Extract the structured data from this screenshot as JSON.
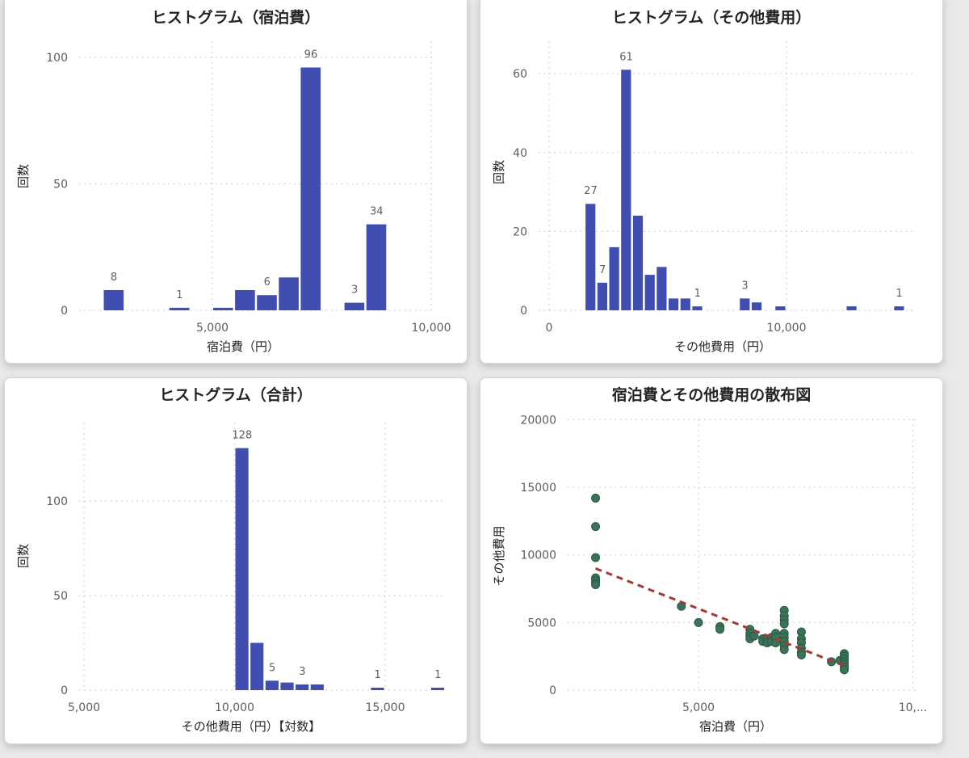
{
  "colors": {
    "bar": "#3f4eb0",
    "scatter_point": "#3b7358",
    "scatter_point_stroke": "#2a5a43",
    "trend_line": "#a33a3a",
    "grid": "#c8c8c8",
    "card_bg": "#ffffff",
    "page_bg": "#e9e9e9"
  },
  "cards": [
    {
      "title": "ヒストグラム（宿泊費）",
      "xlabel": "宿泊費（円）",
      "ylabel": "回数"
    },
    {
      "title": "ヒストグラム（その他費用）",
      "xlabel": "その他費用（円）",
      "ylabel": "回数"
    },
    {
      "title": "ヒストグラム（合計）",
      "xlabel": "その他費用（円）【対数】",
      "ylabel": "回数"
    },
    {
      "title": "宿泊費とその他費用の散布図",
      "xlabel": "宿泊費（円）",
      "ylabel": "その他費用"
    }
  ],
  "chart_data": [
    {
      "type": "bar",
      "title": "ヒストグラム（宿泊費）",
      "xlabel": "宿泊費（円）",
      "ylabel": "回数",
      "x_ticks": [
        "5,000",
        "10,000"
      ],
      "y_ticks": [
        "0",
        "50",
        "100"
      ],
      "xlim": [
        2300,
        10000
      ],
      "ylim": [
        0,
        100
      ],
      "grid": true,
      "bin_width": 500,
      "bins": [
        {
          "x": 2500,
          "value": 8,
          "label": "8"
        },
        {
          "x": 4000,
          "value": 1,
          "label": "1"
        },
        {
          "x": 5000,
          "value": 1,
          "label": ""
        },
        {
          "x": 5500,
          "value": 8,
          "label": ""
        },
        {
          "x": 6000,
          "value": 6,
          "label": "6"
        },
        {
          "x": 6500,
          "value": 13,
          "label": ""
        },
        {
          "x": 7000,
          "value": 96,
          "label": "96"
        },
        {
          "x": 8000,
          "value": 3,
          "label": "3"
        },
        {
          "x": 8500,
          "value": 34,
          "label": "34"
        }
      ]
    },
    {
      "type": "bar",
      "title": "ヒストグラム（その他費用）",
      "xlabel": "その他費用（円）",
      "ylabel": "回数",
      "x_ticks": [
        "0",
        "10,000"
      ],
      "y_ticks": [
        "0",
        "20",
        "40",
        "60"
      ],
      "xlim": [
        0,
        15000
      ],
      "ylim": [
        0,
        60
      ],
      "grid": true,
      "bin_width": 500,
      "bins": [
        {
          "x": 1500,
          "value": 27,
          "label": "27"
        },
        {
          "x": 2000,
          "value": 7,
          "label": "7"
        },
        {
          "x": 2500,
          "value": 16,
          "label": ""
        },
        {
          "x": 3000,
          "value": 61,
          "label": "61"
        },
        {
          "x": 3500,
          "value": 24,
          "label": ""
        },
        {
          "x": 4000,
          "value": 9,
          "label": ""
        },
        {
          "x": 4500,
          "value": 11,
          "label": ""
        },
        {
          "x": 5000,
          "value": 3,
          "label": ""
        },
        {
          "x": 5500,
          "value": 3,
          "label": ""
        },
        {
          "x": 6000,
          "value": 1,
          "label": "1"
        },
        {
          "x": 8000,
          "value": 3,
          "label": "3"
        },
        {
          "x": 8500,
          "value": 2,
          "label": ""
        },
        {
          "x": 9500,
          "value": 1,
          "label": ""
        },
        {
          "x": 12500,
          "value": 1,
          "label": ""
        },
        {
          "x": 14500,
          "value": 1,
          "label": "1"
        }
      ]
    },
    {
      "type": "bar",
      "title": "ヒストグラム（合計）",
      "xlabel": "その他費用（円）【対数】",
      "ylabel": "回数",
      "x_ticks": [
        "5,000",
        "10,000",
        "15,000"
      ],
      "y_ticks": [
        "0",
        "50",
        "100"
      ],
      "xlim": [
        5000,
        17000
      ],
      "ylim": [
        0,
        100
      ],
      "grid": true,
      "bin_width": 500,
      "bins": [
        {
          "x": 10000,
          "value": 128,
          "label": "128"
        },
        {
          "x": 10500,
          "value": 25,
          "label": ""
        },
        {
          "x": 11000,
          "value": 5,
          "label": "5"
        },
        {
          "x": 11500,
          "value": 4,
          "label": ""
        },
        {
          "x": 12000,
          "value": 3,
          "label": "3"
        },
        {
          "x": 12500,
          "value": 3,
          "label": ""
        },
        {
          "x": 14500,
          "value": 1,
          "label": "1"
        },
        {
          "x": 16500,
          "value": 1,
          "label": "1"
        }
      ]
    },
    {
      "type": "scatter",
      "title": "宿泊費とその他費用の散布図",
      "xlabel": "宿泊費（円）",
      "ylabel": "その他費用",
      "x_ticks": [
        "5,000",
        "10,..."
      ],
      "y_ticks": [
        "0",
        "5000",
        "10000",
        "15000",
        "20000"
      ],
      "xlim": [
        1900,
        10000
      ],
      "ylim": [
        0,
        20000
      ],
      "grid": true,
      "trend_line": {
        "style": "dashed",
        "x": [
          2600,
          8400
        ],
        "y": [
          9000,
          1800
        ]
      },
      "points": [
        [
          2600,
          14200
        ],
        [
          2600,
          12100
        ],
        [
          2600,
          9800
        ],
        [
          2600,
          8300
        ],
        [
          2600,
          8100
        ],
        [
          2600,
          7900
        ],
        [
          2600,
          7800
        ],
        [
          4600,
          6200
        ],
        [
          5000,
          5000
        ],
        [
          5500,
          4700
        ],
        [
          5500,
          4500
        ],
        [
          6200,
          4500
        ],
        [
          6200,
          4200
        ],
        [
          6200,
          4000
        ],
        [
          6200,
          3800
        ],
        [
          6300,
          4000
        ],
        [
          6500,
          3800
        ],
        [
          6500,
          3600
        ],
        [
          6600,
          3800
        ],
        [
          6600,
          3500
        ],
        [
          6700,
          3900
        ],
        [
          6700,
          3600
        ],
        [
          6800,
          4200
        ],
        [
          6800,
          3900
        ],
        [
          6800,
          3500
        ],
        [
          7000,
          5900
        ],
        [
          7000,
          5500
        ],
        [
          7000,
          5200
        ],
        [
          7000,
          4900
        ],
        [
          7000,
          4200
        ],
        [
          7000,
          3900
        ],
        [
          7000,
          3600
        ],
        [
          7000,
          3300
        ],
        [
          7000,
          3000
        ],
        [
          7400,
          4300
        ],
        [
          7400,
          3800
        ],
        [
          7400,
          3500
        ],
        [
          7400,
          3100
        ],
        [
          7400,
          2800
        ],
        [
          7400,
          2600
        ],
        [
          8100,
          2100
        ],
        [
          8300,
          2200
        ],
        [
          8400,
          2700
        ],
        [
          8400,
          2500
        ],
        [
          8400,
          2300
        ],
        [
          8400,
          2100
        ],
        [
          8400,
          1900
        ],
        [
          8400,
          1700
        ],
        [
          8400,
          1500
        ]
      ]
    }
  ]
}
